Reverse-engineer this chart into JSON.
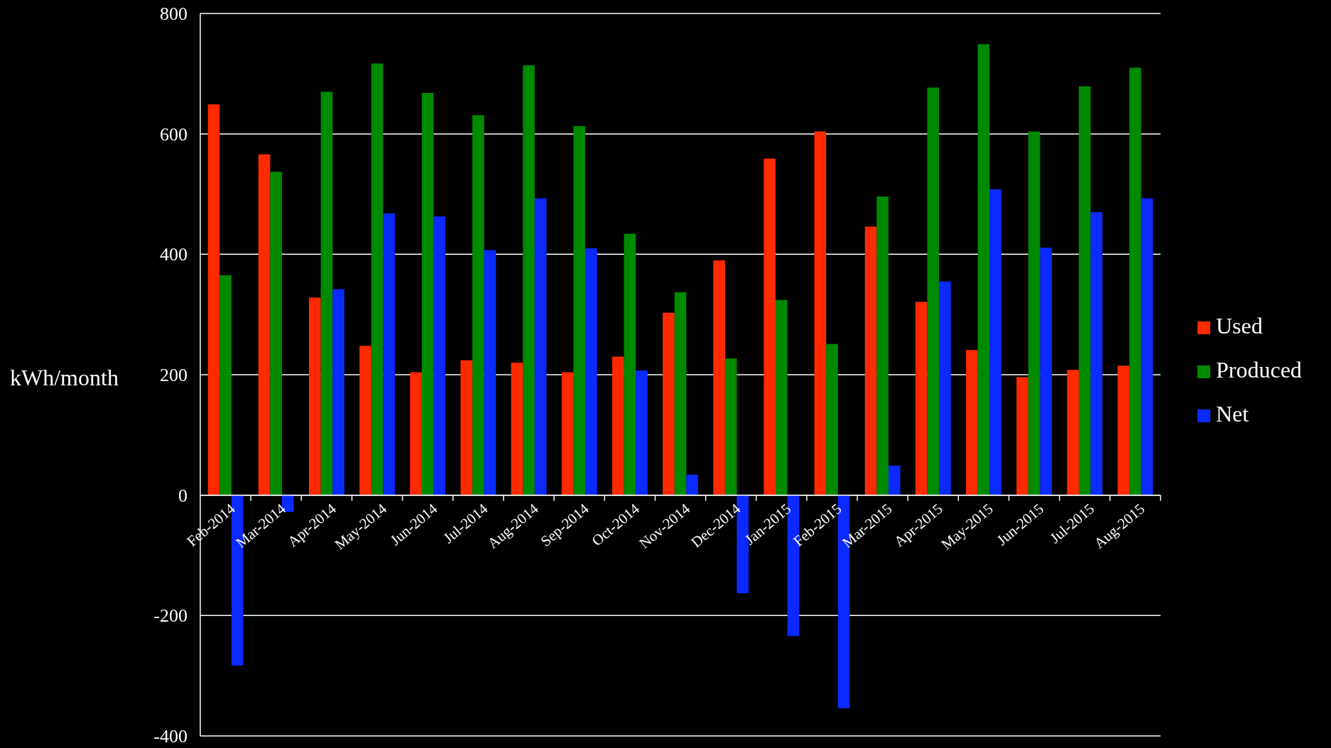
{
  "chart_data": {
    "type": "bar",
    "ylabel": "kWh/month",
    "categories": [
      "Feb-2014",
      "Mar-2014",
      "Apr-2014",
      "May-2014",
      "Jun-2014",
      "Jul-2014",
      "Aug-2014",
      "Sep-2014",
      "Oct-2014",
      "Nov-2014",
      "Dec-2014",
      "Jan-2015",
      "Feb-2015",
      "Mar-2015",
      "Apr-2015",
      "May-2015",
      "Jun-2015",
      "Jul-2015",
      "Aug-2015"
    ],
    "series": [
      {
        "name": "Used",
        "color": "#ff2a00",
        "values": [
          649,
          566,
          328,
          248,
          204,
          224,
          220,
          204,
          230,
          303,
          390,
          559,
          604,
          446,
          321,
          241,
          196,
          208,
          215
        ]
      },
      {
        "name": "Produced",
        "color": "#008a00",
        "values": [
          365,
          537,
          670,
          717,
          668,
          631,
          714,
          613,
          434,
          337,
          227,
          324,
          251,
          496,
          677,
          749,
          604,
          679,
          710
        ]
      },
      {
        "name": "Net",
        "color": "#0a2aff",
        "values": [
          -283,
          -28,
          342,
          468,
          463,
          407,
          493,
          410,
          207,
          34,
          -163,
          -234,
          -354,
          49,
          355,
          508,
          411,
          470,
          493
        ]
      }
    ],
    "ylim": [
      -400,
      800
    ],
    "yticks": [
      -400,
      -200,
      0,
      200,
      400,
      600,
      800
    ],
    "grid": "y",
    "legend": "right"
  }
}
